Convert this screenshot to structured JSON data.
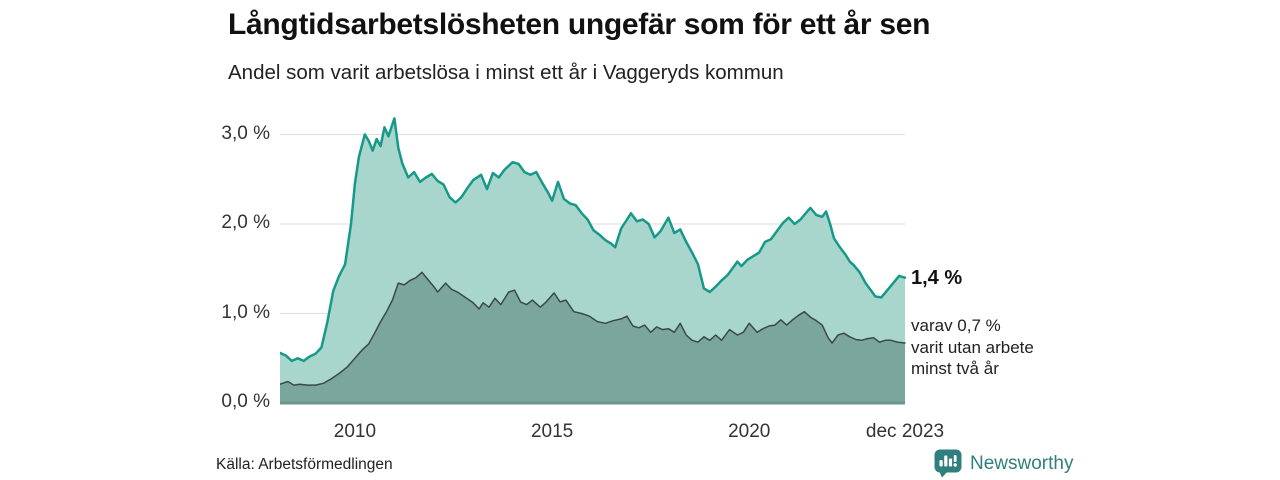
{
  "header": {
    "title": "Långtidsarbetslösheten ungefär som för ett år sen",
    "subtitle": "Andel som varit arbetslösa i minst ett år i Vaggeryds kommun"
  },
  "annotation": {
    "value_label": "1,4 %",
    "sub_lines": [
      "varav 0,7 %",
      "varit utan arbete",
      "minst två år"
    ]
  },
  "footer": {
    "source": "Källa: Arbetsförmedlingen"
  },
  "logo": {
    "text": "Newsworthy",
    "icon": "bar-chart-speech-bubble-icon",
    "color": "#2e7f7e"
  },
  "colors": {
    "accent_line": "#17998a",
    "accent_fill": "#a8d6cd",
    "dark_fill": "#7ba69d",
    "dark_line": "#3a4a46",
    "axis_bar": "#6b948e",
    "gridline": "#e2e2e2",
    "text": "#333333"
  },
  "chart_data": {
    "type": "area",
    "title": "Långtidsarbetslösheten ungefär som för ett år sen",
    "subtitle": "Andel som varit arbetslösa i minst ett år i Vaggeryds kommun",
    "xlabel": "",
    "ylabel": "",
    "grid": true,
    "x_range": [
      2008.1,
      2023.95
    ],
    "ylim": [
      0,
      3.3
    ],
    "y_ticks": [
      {
        "label": "0,0 %",
        "value": 0
      },
      {
        "label": "1,0 %",
        "value": 1
      },
      {
        "label": "2,0 %",
        "value": 2
      },
      {
        "label": "3,0 %",
        "value": 3
      }
    ],
    "x_ticks": [
      {
        "label": "2010",
        "year": 2010
      },
      {
        "label": "2015",
        "year": 2015
      },
      {
        "label": "2020",
        "year": 2020
      },
      {
        "label": "dec 2023",
        "year": 2023.95
      }
    ],
    "series": [
      {
        "name": "Andel arbetslösa minst ett år",
        "end_value_label": "1,4 %",
        "line_color": "#17998a",
        "fill_color": "#a8d6cd",
        "line_width": 2.5,
        "points": [
          [
            2008.1,
            0.56
          ],
          [
            2008.25,
            0.53
          ],
          [
            2008.4,
            0.47
          ],
          [
            2008.55,
            0.5
          ],
          [
            2008.7,
            0.47
          ],
          [
            2008.85,
            0.52
          ],
          [
            2009.0,
            0.55
          ],
          [
            2009.15,
            0.62
          ],
          [
            2009.3,
            0.9
          ],
          [
            2009.45,
            1.25
          ],
          [
            2009.6,
            1.42
          ],
          [
            2009.75,
            1.55
          ],
          [
            2009.9,
            2.0
          ],
          [
            2010.0,
            2.45
          ],
          [
            2010.1,
            2.75
          ],
          [
            2010.25,
            3.0
          ],
          [
            2010.35,
            2.93
          ],
          [
            2010.45,
            2.82
          ],
          [
            2010.55,
            2.95
          ],
          [
            2010.65,
            2.87
          ],
          [
            2010.75,
            3.08
          ],
          [
            2010.85,
            2.98
          ],
          [
            2011.0,
            3.18
          ],
          [
            2011.1,
            2.85
          ],
          [
            2011.2,
            2.68
          ],
          [
            2011.35,
            2.52
          ],
          [
            2011.5,
            2.58
          ],
          [
            2011.65,
            2.47
          ],
          [
            2011.8,
            2.52
          ],
          [
            2011.95,
            2.56
          ],
          [
            2012.1,
            2.48
          ],
          [
            2012.25,
            2.44
          ],
          [
            2012.4,
            2.3
          ],
          [
            2012.55,
            2.24
          ],
          [
            2012.7,
            2.3
          ],
          [
            2012.85,
            2.4
          ],
          [
            2013.0,
            2.49
          ],
          [
            2013.2,
            2.55
          ],
          [
            2013.35,
            2.39
          ],
          [
            2013.5,
            2.57
          ],
          [
            2013.65,
            2.52
          ],
          [
            2013.8,
            2.61
          ],
          [
            2014.0,
            2.69
          ],
          [
            2014.15,
            2.67
          ],
          [
            2014.3,
            2.58
          ],
          [
            2014.45,
            2.55
          ],
          [
            2014.6,
            2.58
          ],
          [
            2014.75,
            2.46
          ],
          [
            2014.9,
            2.35
          ],
          [
            2015.0,
            2.26
          ],
          [
            2015.15,
            2.47
          ],
          [
            2015.3,
            2.28
          ],
          [
            2015.45,
            2.23
          ],
          [
            2015.6,
            2.21
          ],
          [
            2015.75,
            2.12
          ],
          [
            2015.9,
            2.05
          ],
          [
            2016.05,
            1.93
          ],
          [
            2016.2,
            1.88
          ],
          [
            2016.35,
            1.82
          ],
          [
            2016.5,
            1.78
          ],
          [
            2016.6,
            1.74
          ],
          [
            2016.75,
            1.95
          ],
          [
            2016.9,
            2.05
          ],
          [
            2017.0,
            2.12
          ],
          [
            2017.15,
            2.03
          ],
          [
            2017.3,
            2.05
          ],
          [
            2017.45,
            2.0
          ],
          [
            2017.6,
            1.85
          ],
          [
            2017.75,
            1.92
          ],
          [
            2017.95,
            2.07
          ],
          [
            2018.1,
            1.9
          ],
          [
            2018.25,
            1.94
          ],
          [
            2018.4,
            1.8
          ],
          [
            2018.55,
            1.68
          ],
          [
            2018.7,
            1.55
          ],
          [
            2018.85,
            1.28
          ],
          [
            2019.0,
            1.24
          ],
          [
            2019.15,
            1.3
          ],
          [
            2019.3,
            1.37
          ],
          [
            2019.45,
            1.43
          ],
          [
            2019.6,
            1.52
          ],
          [
            2019.7,
            1.58
          ],
          [
            2019.8,
            1.53
          ],
          [
            2019.95,
            1.6
          ],
          [
            2020.1,
            1.64
          ],
          [
            2020.25,
            1.68
          ],
          [
            2020.4,
            1.8
          ],
          [
            2020.55,
            1.83
          ],
          [
            2020.7,
            1.92
          ],
          [
            2020.85,
            2.01
          ],
          [
            2021.0,
            2.07
          ],
          [
            2021.15,
            2.0
          ],
          [
            2021.3,
            2.05
          ],
          [
            2021.45,
            2.13
          ],
          [
            2021.55,
            2.18
          ],
          [
            2021.7,
            2.1
          ],
          [
            2021.85,
            2.08
          ],
          [
            2021.95,
            2.14
          ],
          [
            2022.05,
            2.0
          ],
          [
            2022.15,
            1.84
          ],
          [
            2022.3,
            1.74
          ],
          [
            2022.45,
            1.65
          ],
          [
            2022.55,
            1.58
          ],
          [
            2022.65,
            1.54
          ],
          [
            2022.8,
            1.46
          ],
          [
            2022.95,
            1.34
          ],
          [
            2023.1,
            1.25
          ],
          [
            2023.2,
            1.19
          ],
          [
            2023.35,
            1.18
          ],
          [
            2023.5,
            1.26
          ],
          [
            2023.65,
            1.34
          ],
          [
            2023.8,
            1.42
          ],
          [
            2023.95,
            1.4
          ]
        ]
      },
      {
        "name": "Andel utan arbete minst två år",
        "end_value_label": "0,7 %",
        "line_color": "#3a4a46",
        "fill_color": "#7ba69d",
        "line_width": 1.5,
        "points": [
          [
            2008.1,
            0.21
          ],
          [
            2008.3,
            0.24
          ],
          [
            2008.45,
            0.2
          ],
          [
            2008.6,
            0.21
          ],
          [
            2008.8,
            0.2
          ],
          [
            2009.0,
            0.2
          ],
          [
            2009.2,
            0.22
          ],
          [
            2009.4,
            0.27
          ],
          [
            2009.6,
            0.33
          ],
          [
            2009.8,
            0.4
          ],
          [
            2010.0,
            0.5
          ],
          [
            2010.2,
            0.6
          ],
          [
            2010.35,
            0.66
          ],
          [
            2010.5,
            0.78
          ],
          [
            2010.65,
            0.91
          ],
          [
            2010.8,
            1.02
          ],
          [
            2010.95,
            1.15
          ],
          [
            2011.1,
            1.34
          ],
          [
            2011.25,
            1.32
          ],
          [
            2011.4,
            1.37
          ],
          [
            2011.55,
            1.4
          ],
          [
            2011.7,
            1.46
          ],
          [
            2011.85,
            1.38
          ],
          [
            2012.0,
            1.3
          ],
          [
            2012.1,
            1.24
          ],
          [
            2012.3,
            1.34
          ],
          [
            2012.45,
            1.27
          ],
          [
            2012.6,
            1.24
          ],
          [
            2012.8,
            1.18
          ],
          [
            2013.0,
            1.12
          ],
          [
            2013.15,
            1.05
          ],
          [
            2013.25,
            1.12
          ],
          [
            2013.4,
            1.07
          ],
          [
            2013.55,
            1.17
          ],
          [
            2013.7,
            1.1
          ],
          [
            2013.9,
            1.24
          ],
          [
            2014.05,
            1.26
          ],
          [
            2014.2,
            1.13
          ],
          [
            2014.35,
            1.1
          ],
          [
            2014.5,
            1.15
          ],
          [
            2014.7,
            1.07
          ],
          [
            2014.85,
            1.13
          ],
          [
            2015.05,
            1.23
          ],
          [
            2015.2,
            1.13
          ],
          [
            2015.35,
            1.15
          ],
          [
            2015.55,
            1.02
          ],
          [
            2015.75,
            1.0
          ],
          [
            2015.95,
            0.97
          ],
          [
            2016.15,
            0.91
          ],
          [
            2016.35,
            0.89
          ],
          [
            2016.55,
            0.92
          ],
          [
            2016.75,
            0.94
          ],
          [
            2016.9,
            0.97
          ],
          [
            2017.05,
            0.86
          ],
          [
            2017.2,
            0.84
          ],
          [
            2017.35,
            0.87
          ],
          [
            2017.5,
            0.79
          ],
          [
            2017.65,
            0.85
          ],
          [
            2017.8,
            0.82
          ],
          [
            2017.95,
            0.83
          ],
          [
            2018.1,
            0.79
          ],
          [
            2018.25,
            0.89
          ],
          [
            2018.4,
            0.76
          ],
          [
            2018.55,
            0.7
          ],
          [
            2018.7,
            0.68
          ],
          [
            2018.85,
            0.74
          ],
          [
            2019.0,
            0.7
          ],
          [
            2019.15,
            0.76
          ],
          [
            2019.3,
            0.7
          ],
          [
            2019.5,
            0.82
          ],
          [
            2019.7,
            0.76
          ],
          [
            2019.85,
            0.79
          ],
          [
            2020.0,
            0.89
          ],
          [
            2020.2,
            0.79
          ],
          [
            2020.35,
            0.83
          ],
          [
            2020.5,
            0.86
          ],
          [
            2020.65,
            0.87
          ],
          [
            2020.8,
            0.93
          ],
          [
            2020.95,
            0.87
          ],
          [
            2021.1,
            0.93
          ],
          [
            2021.25,
            0.98
          ],
          [
            2021.4,
            1.02
          ],
          [
            2021.55,
            0.96
          ],
          [
            2021.7,
            0.92
          ],
          [
            2021.85,
            0.87
          ],
          [
            2022.0,
            0.73
          ],
          [
            2022.1,
            0.67
          ],
          [
            2022.25,
            0.76
          ],
          [
            2022.4,
            0.78
          ],
          [
            2022.55,
            0.74
          ],
          [
            2022.7,
            0.71
          ],
          [
            2022.85,
            0.7
          ],
          [
            2023.0,
            0.72
          ],
          [
            2023.15,
            0.73
          ],
          [
            2023.3,
            0.68
          ],
          [
            2023.45,
            0.7
          ],
          [
            2023.6,
            0.7
          ],
          [
            2023.75,
            0.68
          ],
          [
            2023.95,
            0.67
          ]
        ]
      }
    ]
  }
}
